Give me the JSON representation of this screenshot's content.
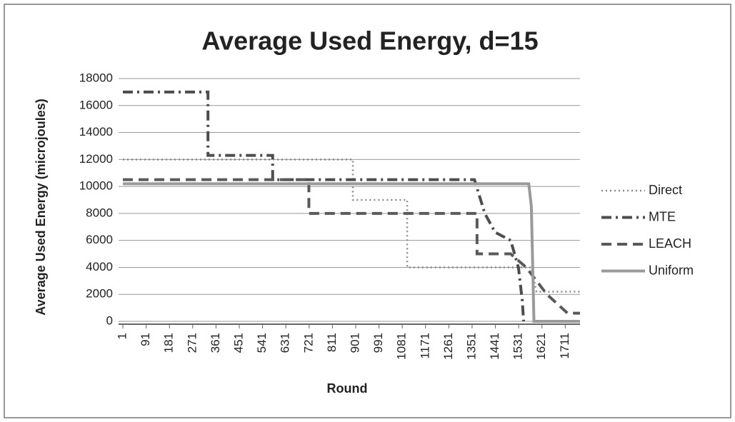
{
  "chart_data": {
    "type": "line",
    "title": "Average Used Energy, d=15",
    "x_label": "Round",
    "y_label": "Average Used Energy (microjoules)",
    "xlim": [
      1,
      1768
    ],
    "xticks": [
      1,
      91,
      181,
      271,
      361,
      451,
      541,
      631,
      721,
      811,
      901,
      991,
      1081,
      1171,
      1261,
      1351,
      1441,
      1531,
      1621,
      1711
    ],
    "ylim": [
      0,
      18000
    ],
    "yticks": [
      0,
      2000,
      4000,
      6000,
      8000,
      10000,
      12000,
      14000,
      16000,
      18000
    ],
    "grid": true,
    "legend": "right",
    "series": [
      {
        "name": "Direct",
        "color": "#8a8a8a",
        "style": "dotted",
        "x": [
          1,
          890,
          890,
          1100,
          1100,
          1580,
          1600,
          1768
        ],
        "values": [
          12000,
          12000,
          9000,
          9000,
          4000,
          4000,
          2200,
          2200
        ]
      },
      {
        "name": "MTE",
        "color": "#4d4d4d",
        "style": "dashdot",
        "x": [
          1,
          330,
          330,
          580,
          580,
          1360,
          1400,
          1440,
          1500,
          1530,
          1545,
          1550
        ],
        "values": [
          17000,
          17000,
          12300,
          12300,
          10500,
          10500,
          8000,
          6600,
          6000,
          4000,
          1500,
          0
        ]
      },
      {
        "name": "LEACH",
        "color": "#5a5a5a",
        "style": "dashed",
        "x": [
          1,
          720,
          720,
          1370,
          1370,
          1500,
          1560,
          1640,
          1720,
          1768
        ],
        "values": [
          10500,
          10500,
          8000,
          8000,
          5000,
          5000,
          4000,
          2000,
          600,
          600
        ]
      },
      {
        "name": "Uniform",
        "color": "#9a9a9a",
        "style": "solid",
        "x": [
          1,
          1570,
          1580,
          1590,
          1768
        ],
        "values": [
          10200,
          10200,
          8500,
          0,
          0
        ]
      }
    ]
  }
}
